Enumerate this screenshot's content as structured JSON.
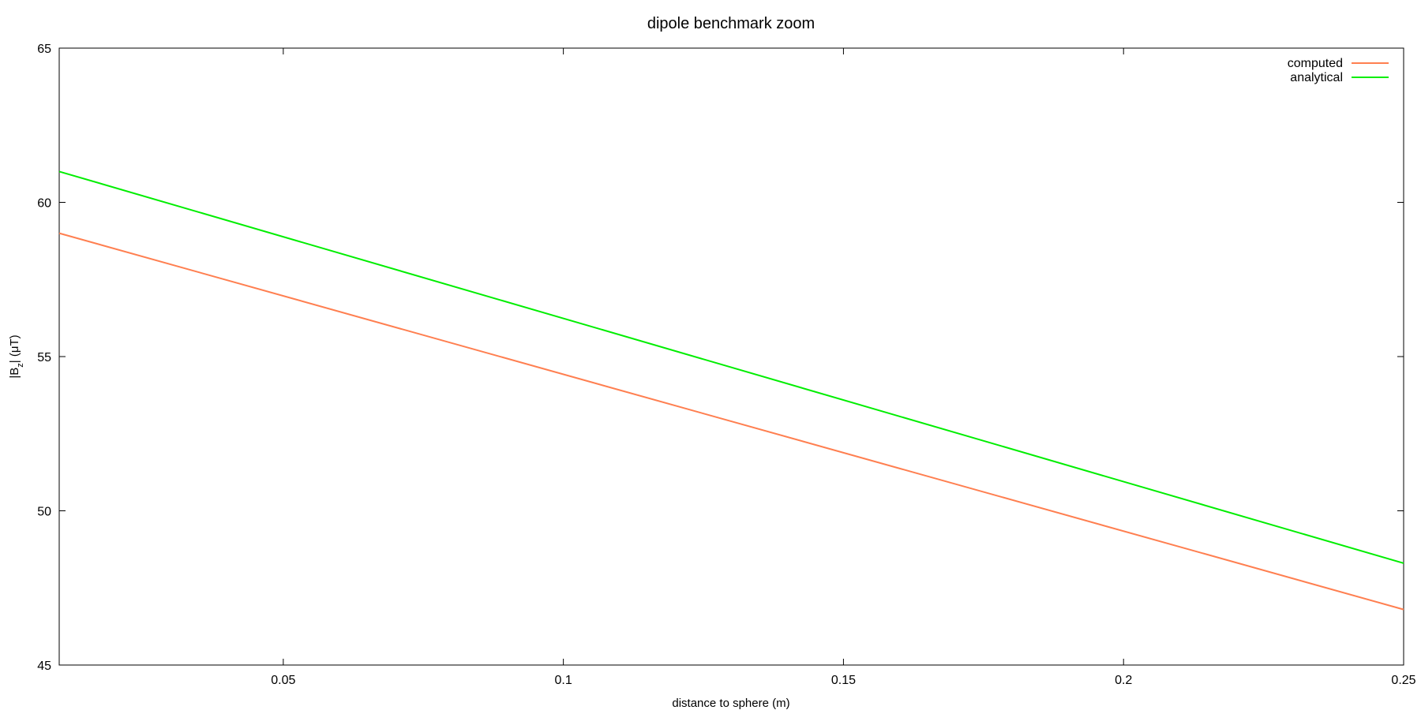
{
  "chart_data": {
    "type": "line",
    "title": "dipole benchmark zoom",
    "xlabel": "distance to sphere (m)",
    "ylabel_prefix": "|B",
    "ylabel_sub": "z",
    "ylabel_suffix": "| (μT)",
    "xlim": [
      0.01,
      0.25
    ],
    "ylim": [
      45,
      65
    ],
    "xticks": [
      0.05,
      0.1,
      0.15,
      0.2,
      0.25
    ],
    "xtick_labels": [
      "0.05",
      "0.1",
      "0.15",
      "0.2",
      "0.25"
    ],
    "yticks": [
      45,
      50,
      55,
      60,
      65
    ],
    "ytick_labels": [
      "45",
      "50",
      "55",
      "60",
      "65"
    ],
    "grid": false,
    "legend_position": "top-right",
    "series": [
      {
        "name": "computed",
        "color": "#ff7f50",
        "x": [
          0.01,
          0.25
        ],
        "y": [
          59.0,
          46.8
        ]
      },
      {
        "name": "analytical",
        "color": "#00ee00",
        "x": [
          0.01,
          0.25
        ],
        "y": [
          61.0,
          48.3
        ]
      }
    ]
  }
}
